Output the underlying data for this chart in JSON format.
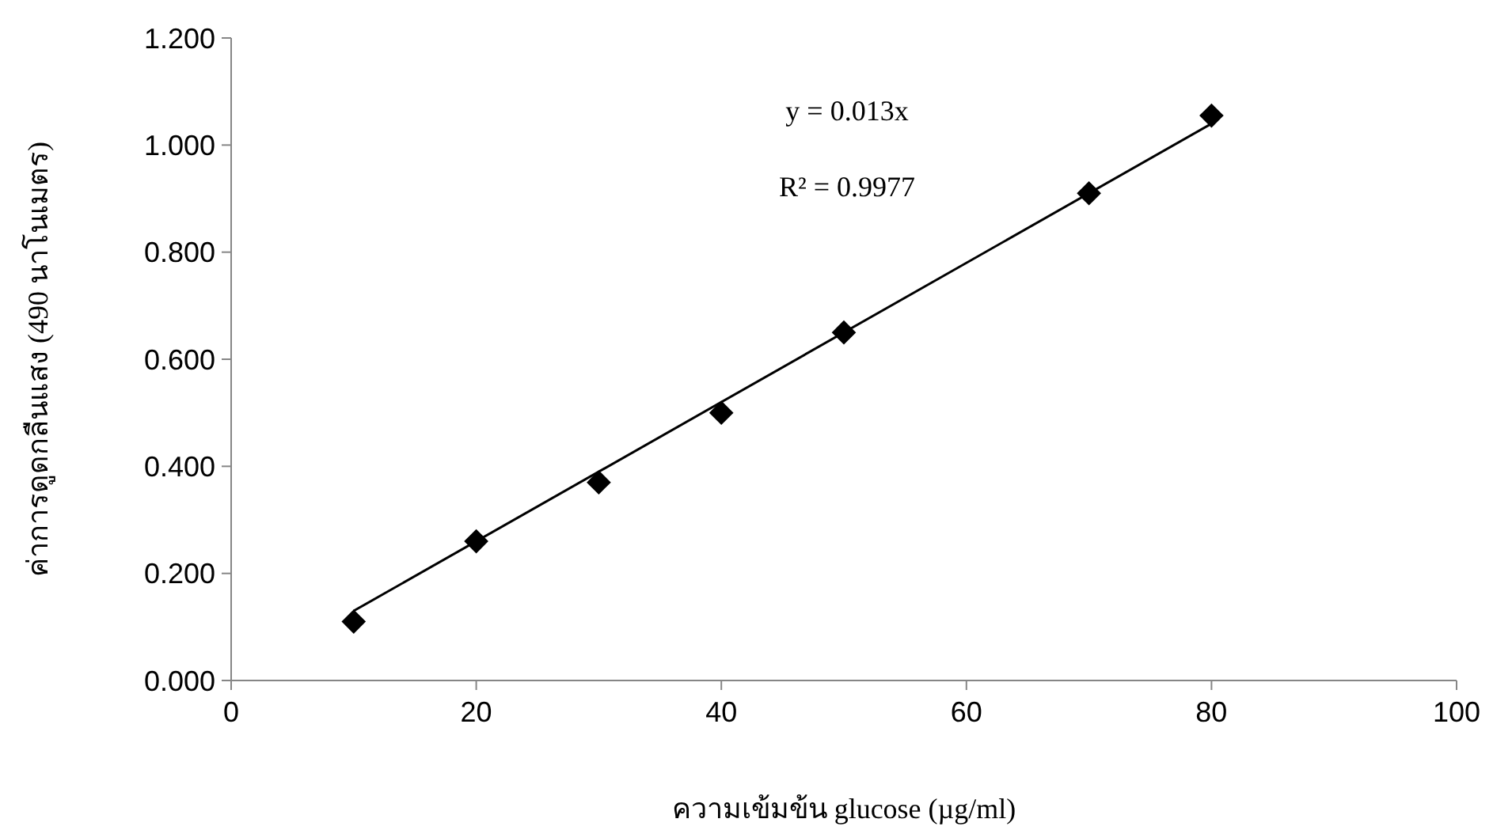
{
  "chart_data": {
    "type": "scatter",
    "xlabel": "ความเข้มข้น glucose (µg/ml)",
    "ylabel": "ค่าการดูดกลืนแสง (490 นาโนเมตร)",
    "x": [
      10,
      20,
      30,
      40,
      50,
      70,
      80
    ],
    "series": [
      {
        "color": "#000000",
        "marker": "diamond",
        "values": [
          0.11,
          0.26,
          0.37,
          0.5,
          0.65,
          0.91,
          1.055
        ]
      },
      {
        "type": "line",
        "color": "#000000",
        "x": [
          10,
          80
        ],
        "values": [
          0.13,
          1.04
        ]
      }
    ],
    "xlim": [
      0,
      100
    ],
    "xticks": [
      0,
      20,
      40,
      60,
      80,
      100
    ],
    "ylim": [
      0,
      1.2
    ],
    "yticks": [
      {
        "value": 0,
        "label": "0.000"
      },
      {
        "value": 0.2,
        "label": "0.200"
      },
      {
        "value": 0.4,
        "label": "0.400"
      },
      {
        "value": 0.6,
        "label": "0.600"
      },
      {
        "value": 0.8,
        "label": "0.800"
      },
      {
        "value": 1,
        "label": "1.000"
      },
      {
        "value": 1.2,
        "label": "1.200"
      }
    ],
    "annotations": [
      "y = 0.013x",
      "R² = 0.9977"
    ],
    "grid": false
  }
}
